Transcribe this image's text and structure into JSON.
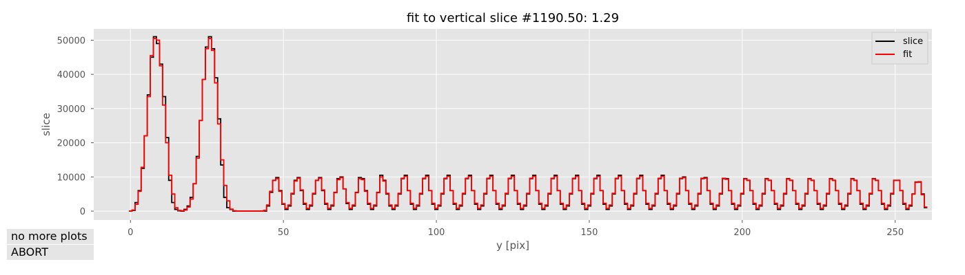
{
  "chart_data": {
    "type": "line",
    "step": true,
    "title": "fit to vertical slice #1190.50: 1.29",
    "xlabel": "y [pix]",
    "ylabel": "slice",
    "xlim": [
      -12,
      262
    ],
    "ylim": [
      -2600,
      53300
    ],
    "xticks": [
      0,
      50,
      100,
      150,
      200,
      250
    ],
    "yticks": [
      0,
      10000,
      20000,
      30000,
      40000,
      50000
    ],
    "grid": true,
    "legend": "top-right",
    "x_start": 0,
    "x_step": 1,
    "series": [
      {
        "name": "slice",
        "color": "#000000",
        "values": [
          0,
          200,
          2500,
          6000,
          12500,
          22000,
          34000,
          45000,
          51000,
          49000,
          43000,
          33500,
          21500,
          9000,
          2500,
          500,
          100,
          0,
          500,
          1500,
          4000,
          8000,
          16000,
          26500,
          38500,
          48000,
          51000,
          47500,
          39000,
          27000,
          13500,
          4000,
          1000,
          500,
          0,
          0,
          0,
          0,
          0,
          0,
          0,
          0,
          0,
          0,
          0,
          1500,
          5500,
          9000,
          9800,
          6000,
          2000,
          500,
          1500,
          5000,
          9000,
          9800,
          6000,
          2000,
          500,
          1500,
          5000,
          9000,
          9800,
          6000,
          2000,
          500,
          1500,
          5500,
          9500,
          10000,
          6500,
          2200,
          500,
          1500,
          5500,
          9800,
          9500,
          6000,
          2000,
          500,
          1500,
          5500,
          10500,
          9000,
          5000,
          1500,
          500,
          1500,
          5000,
          9500,
          10500,
          6000,
          2000,
          500,
          1500,
          5000,
          9500,
          10500,
          6000,
          2000,
          500,
          1500,
          5000,
          9500,
          10500,
          6000,
          2000,
          500,
          1500,
          5000,
          9500,
          10500,
          6000,
          2000,
          500,
          1500,
          5000,
          9500,
          10500,
          6000,
          2000,
          500,
          1500,
          5000,
          9500,
          10500,
          6000,
          2000,
          500,
          1500,
          5000,
          9500,
          10500,
          6000,
          2000,
          500,
          1500,
          5000,
          9500,
          10500,
          6000,
          2000,
          500,
          1500,
          5000,
          9500,
          10500,
          6000,
          2000,
          500,
          1500,
          5000,
          9500,
          10500,
          6000,
          2000,
          500,
          1500,
          5000,
          9500,
          10500,
          6000,
          2000,
          500,
          1500,
          5000,
          9500,
          10500,
          6000,
          2000,
          500,
          1500,
          5000,
          9500,
          10500,
          6000,
          2000,
          500,
          1500,
          5000,
          9500,
          10000,
          6000,
          2000,
          500,
          1500,
          5000,
          9500,
          9800,
          6000,
          2000,
          500,
          1500,
          5000,
          9500,
          9500,
          6000,
          2000,
          500,
          1500,
          5000,
          9500,
          9000,
          6000,
          2000,
          500,
          1500,
          5000,
          9500,
          9000,
          6000,
          2000,
          500,
          1500,
          5000,
          9500,
          9000,
          6000,
          2000,
          500,
          1500,
          5000,
          9500,
          9000,
          6000,
          2000,
          500,
          1500,
          5000,
          9500,
          9000,
          6000,
          2000,
          500,
          1500,
          5000,
          9500,
          9000,
          6000,
          2000,
          500,
          1500,
          5000,
          9500,
          9000,
          6000,
          2000,
          500,
          1500,
          5000,
          9000,
          9000,
          6000,
          2000,
          500,
          1500,
          5000,
          8500,
          8500,
          5000,
          1000
        ]
      },
      {
        "name": "fit",
        "color": "#ff0000",
        "values": [
          0,
          300,
          2000,
          5800,
          12800,
          22000,
          33500,
          45500,
          50500,
          50000,
          42500,
          31000,
          20000,
          10500,
          5000,
          1000,
          200,
          100,
          300,
          1200,
          3500,
          8000,
          15500,
          26500,
          38500,
          47500,
          50500,
          47000,
          37500,
          25500,
          15000,
          7500,
          3000,
          600,
          100,
          0,
          0,
          0,
          0,
          0,
          0,
          0,
          0,
          0,
          200,
          1800,
          5800,
          9000,
          9500,
          5800,
          2200,
          800,
          1800,
          5200,
          8800,
          9600,
          6200,
          2300,
          800,
          1800,
          5200,
          9000,
          9600,
          6200,
          2300,
          800,
          1800,
          5400,
          9200,
          9800,
          6500,
          2500,
          800,
          1800,
          5400,
          9500,
          9200,
          5800,
          2300,
          800,
          1800,
          5400,
          10000,
          8800,
          5200,
          1800,
          800,
          1800,
          5200,
          9600,
          10200,
          6000,
          2300,
          800,
          1800,
          5200,
          9600,
          10200,
          6000,
          2300,
          800,
          1800,
          5200,
          9600,
          10200,
          6000,
          2300,
          800,
          1800,
          5200,
          9600,
          10200,
          6000,
          2300,
          800,
          1800,
          5200,
          9600,
          10200,
          6000,
          2300,
          800,
          1800,
          5200,
          9600,
          10200,
          6000,
          2300,
          800,
          1800,
          5200,
          9600,
          10200,
          6000,
          2300,
          800,
          1800,
          5200,
          9600,
          10200,
          6000,
          2300,
          800,
          1800,
          5200,
          9600,
          10200,
          6000,
          2300,
          800,
          1800,
          5200,
          9600,
          10200,
          6000,
          2300,
          800,
          1800,
          5200,
          9600,
          10200,
          6000,
          2300,
          800,
          1800,
          5200,
          9600,
          10200,
          6000,
          2300,
          800,
          1800,
          5200,
          9600,
          10200,
          6000,
          2300,
          800,
          1800,
          5200,
          9600,
          9800,
          6000,
          2300,
          800,
          1800,
          5200,
          9600,
          9600,
          6000,
          2300,
          800,
          1800,
          5200,
          9600,
          9300,
          6000,
          2300,
          800,
          1800,
          5200,
          9400,
          9000,
          6000,
          2300,
          800,
          1800,
          5200,
          9400,
          9000,
          6000,
          2300,
          800,
          1800,
          5200,
          9400,
          9000,
          6000,
          2300,
          800,
          1800,
          5200,
          9400,
          9000,
          6000,
          2300,
          800,
          1800,
          5200,
          9400,
          9000,
          6000,
          2300,
          800,
          1800,
          5200,
          9400,
          9000,
          6000,
          2300,
          800,
          1800,
          5200,
          9400,
          9000,
          6000,
          2300,
          800,
          1800,
          5200,
          9000,
          9000,
          6000,
          2300,
          800,
          1800,
          5000,
          8400,
          8600,
          4800,
          1200
        ]
      }
    ]
  },
  "buttons": {
    "no_more_plots": "no more plots",
    "abort": "ABORT"
  }
}
